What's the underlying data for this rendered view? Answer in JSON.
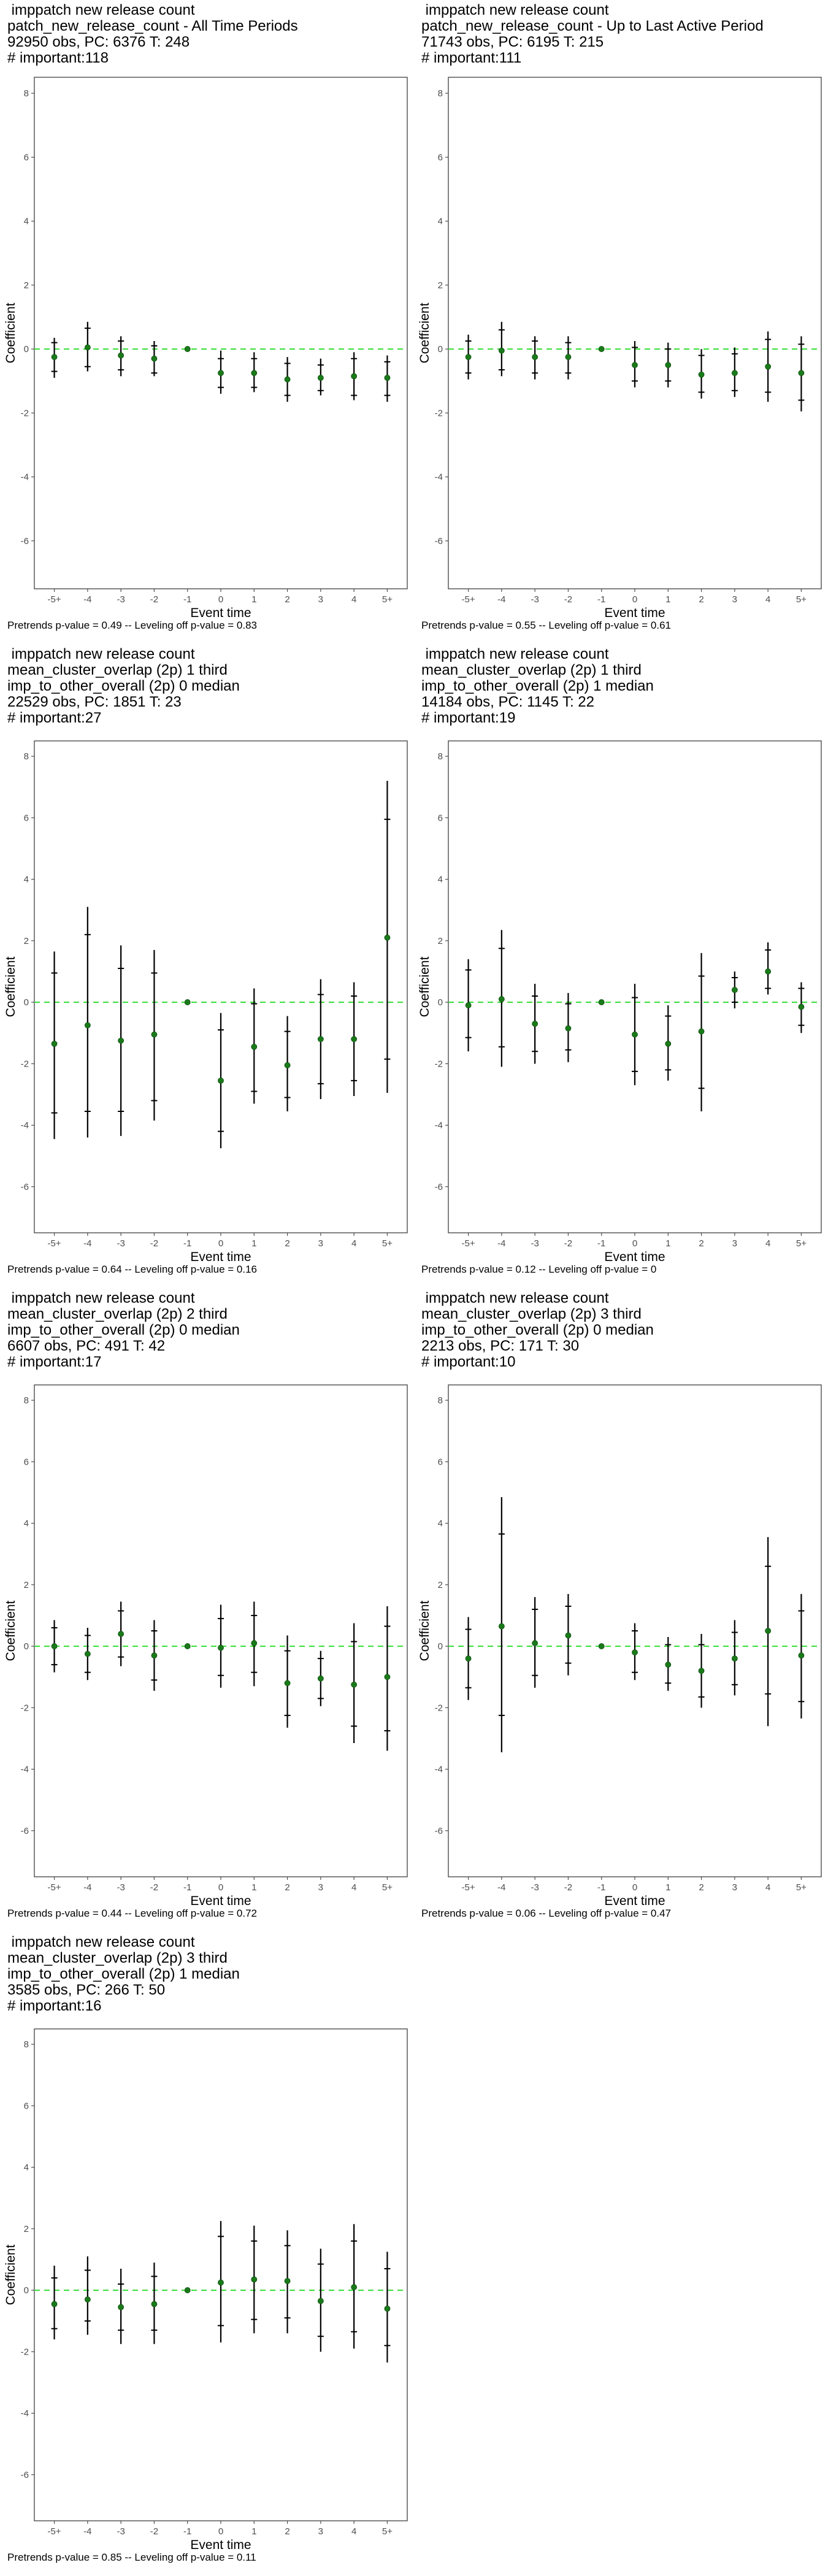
{
  "chart_data": [
    {
      "type": "scatter",
      "title_lines": [
        " imppatch new release count",
        "patch_new_release_count - All Time Periods",
        "92950 obs, PC: 6376 T: 248",
        "# important:118"
      ],
      "xlabel": "Event time",
      "ylabel": "Coefficient",
      "ylim": [
        -7.5,
        8.5
      ],
      "yticks": [
        -6,
        -4,
        -2,
        0,
        2,
        4,
        6,
        8
      ],
      "categories": [
        "-5+",
        "-4",
        "-3",
        "-2",
        "-1",
        "0",
        "1",
        "2",
        "3",
        "4",
        "5+"
      ],
      "series": [
        {
          "estimate": [
            -0.25,
            0.05,
            -0.2,
            -0.3,
            0.0,
            -0.75,
            -0.75,
            -0.95,
            -0.9,
            -0.85,
            -0.9
          ],
          "ci_outer_low": [
            -0.9,
            -0.7,
            -0.85,
            -0.85,
            0.0,
            -1.4,
            -1.35,
            -1.65,
            -1.45,
            -1.6,
            -1.65
          ],
          "ci_outer_high": [
            0.35,
            0.85,
            0.4,
            0.25,
            0.0,
            -0.05,
            -0.1,
            -0.25,
            -0.3,
            -0.1,
            -0.2
          ],
          "ci_inner_low": [
            -0.7,
            -0.55,
            -0.65,
            -0.75,
            0.0,
            -1.2,
            -1.2,
            -1.45,
            -1.3,
            -1.45,
            -1.45
          ],
          "ci_inner_high": [
            0.2,
            0.65,
            0.25,
            0.1,
            0.0,
            -0.3,
            -0.3,
            -0.45,
            -0.5,
            -0.3,
            -0.4
          ]
        }
      ],
      "reference_line": 0,
      "caption": "Pretrends p-value = 0.49 -- Leveling off p-value = 0.83"
    },
    {
      "type": "scatter",
      "title_lines": [
        " imppatch new release count",
        "patch_new_release_count - Up to Last Active Period",
        "71743 obs, PC: 6195 T: 215",
        "# important:111"
      ],
      "xlabel": "Event time",
      "ylabel": "Coefficient",
      "ylim": [
        -7.5,
        8.5
      ],
      "yticks": [
        -6,
        -4,
        -2,
        0,
        2,
        4,
        6,
        8
      ],
      "categories": [
        "-5+",
        "-4",
        "-3",
        "-2",
        "-1",
        "0",
        "1",
        "2",
        "3",
        "4",
        "5+"
      ],
      "series": [
        {
          "estimate": [
            -0.25,
            -0.05,
            -0.25,
            -0.25,
            0.0,
            -0.5,
            -0.5,
            -0.8,
            -0.75,
            -0.55,
            -0.75
          ],
          "ci_outer_low": [
            -0.95,
            -0.85,
            -0.95,
            -0.95,
            0.0,
            -1.2,
            -1.2,
            -1.55,
            -1.5,
            -1.65,
            -1.95
          ],
          "ci_outer_high": [
            0.45,
            0.85,
            0.4,
            0.4,
            0.0,
            0.25,
            0.2,
            0.0,
            0.05,
            0.55,
            0.4
          ],
          "ci_inner_low": [
            -0.75,
            -0.65,
            -0.75,
            -0.75,
            0.0,
            -1.0,
            -1.0,
            -1.35,
            -1.3,
            -1.35,
            -1.6
          ],
          "ci_inner_high": [
            0.25,
            0.6,
            0.25,
            0.2,
            0.0,
            0.05,
            0.0,
            -0.2,
            -0.15,
            0.3,
            0.15
          ]
        }
      ],
      "reference_line": 0,
      "caption": "Pretrends p-value = 0.55 -- Leveling off p-value = 0.61"
    },
    {
      "type": "scatter",
      "title_lines": [
        " imppatch new release count",
        "mean_cluster_overlap (2p) 1 third",
        "imp_to_other_overall (2p) 0 median",
        "22529 obs, PC: 1851 T: 23",
        "# important:27"
      ],
      "xlabel": "Event time",
      "ylabel": "Coefficient",
      "ylim": [
        -7.5,
        8.5
      ],
      "yticks": [
        -6,
        -4,
        -2,
        0,
        2,
        4,
        6,
        8
      ],
      "categories": [
        "-5+",
        "-4",
        "-3",
        "-2",
        "-1",
        "0",
        "1",
        "2",
        "3",
        "4",
        "5+"
      ],
      "series": [
        {
          "estimate": [
            -1.35,
            -0.75,
            -1.25,
            -1.05,
            0.0,
            -2.55,
            -1.45,
            -2.05,
            -1.2,
            -1.2,
            2.1
          ],
          "ci_outer_low": [
            -4.45,
            -4.4,
            -4.35,
            -3.85,
            0.0,
            -4.75,
            -3.3,
            -3.55,
            -3.15,
            -3.05,
            -2.95
          ],
          "ci_outer_high": [
            1.65,
            3.1,
            1.85,
            1.7,
            0.0,
            -0.35,
            0.45,
            -0.45,
            0.75,
            0.65,
            7.2
          ],
          "ci_inner_low": [
            -3.6,
            -3.55,
            -3.55,
            -3.2,
            0.0,
            -4.2,
            -2.9,
            -3.1,
            -2.65,
            -2.55,
            -1.85
          ],
          "ci_inner_high": [
            0.95,
            2.2,
            1.1,
            0.95,
            0.0,
            -0.9,
            -0.05,
            -0.95,
            0.25,
            0.2,
            5.95
          ]
        }
      ],
      "reference_line": 0,
      "caption": "Pretrends p-value = 0.64 -- Leveling off p-value = 0.16"
    },
    {
      "type": "scatter",
      "title_lines": [
        " imppatch new release count",
        "mean_cluster_overlap (2p) 1 third",
        "imp_to_other_overall (2p) 1 median",
        "14184 obs, PC: 1145 T: 22",
        "# important:19"
      ],
      "xlabel": "Event time",
      "ylabel": "Coefficient",
      "ylim": [
        -7.5,
        8.5
      ],
      "yticks": [
        -6,
        -4,
        -2,
        0,
        2,
        4,
        6,
        8
      ],
      "categories": [
        "-5+",
        "-4",
        "-3",
        "-2",
        "-1",
        "0",
        "1",
        "2",
        "3",
        "4",
        "5+"
      ],
      "series": [
        {
          "estimate": [
            -0.1,
            0.1,
            -0.7,
            -0.85,
            0.0,
            -1.05,
            -1.35,
            -0.95,
            0.4,
            1.0,
            -0.15
          ],
          "ci_outer_low": [
            -1.6,
            -2.1,
            -2.0,
            -1.95,
            0.0,
            -2.7,
            -2.55,
            -3.55,
            -0.2,
            0.25,
            -1.0
          ],
          "ci_outer_high": [
            1.4,
            2.35,
            0.6,
            0.3,
            0.0,
            0.6,
            -0.1,
            1.6,
            1.0,
            1.95,
            0.65
          ],
          "ci_inner_low": [
            -1.15,
            -1.45,
            -1.6,
            -1.55,
            0.0,
            -2.25,
            -2.2,
            -2.8,
            0.0,
            0.45,
            -0.75
          ],
          "ci_inner_high": [
            1.05,
            1.75,
            0.2,
            -0.05,
            0.0,
            0.15,
            -0.45,
            0.85,
            0.8,
            1.7,
            0.45
          ]
        }
      ],
      "reference_line": 0,
      "caption": "Pretrends p-value = 0.12 -- Leveling off p-value = 0"
    },
    {
      "type": "scatter",
      "title_lines": [
        " imppatch new release count",
        "mean_cluster_overlap (2p) 2 third",
        "imp_to_other_overall (2p) 0 median",
        "6607 obs, PC: 491 T: 42",
        "# important:17"
      ],
      "xlabel": "Event time",
      "ylabel": "Coefficient",
      "ylim": [
        -7.5,
        8.5
      ],
      "yticks": [
        -6,
        -4,
        -2,
        0,
        2,
        4,
        6,
        8
      ],
      "categories": [
        "-5+",
        "-4",
        "-3",
        "-2",
        "-1",
        "0",
        "1",
        "2",
        "3",
        "4",
        "5+"
      ],
      "series": [
        {
          "estimate": [
            0.0,
            -0.25,
            0.4,
            -0.3,
            0.0,
            -0.05,
            0.1,
            -1.2,
            -1.05,
            -1.25,
            -1.0
          ],
          "ci_outer_low": [
            -0.85,
            -1.1,
            -0.65,
            -1.45,
            0.0,
            -1.35,
            -1.3,
            -2.65,
            -1.95,
            -3.15,
            -3.4
          ],
          "ci_outer_high": [
            0.85,
            0.6,
            1.45,
            0.85,
            0.0,
            1.35,
            1.45,
            0.35,
            -0.15,
            0.75,
            1.3
          ],
          "ci_inner_low": [
            -0.6,
            -0.85,
            -0.35,
            -1.1,
            0.0,
            -0.95,
            -0.85,
            -2.25,
            -1.7,
            -2.6,
            -2.75
          ],
          "ci_inner_high": [
            0.6,
            0.35,
            1.15,
            0.5,
            0.0,
            0.9,
            1.0,
            -0.15,
            -0.4,
            0.15,
            0.65
          ]
        }
      ],
      "reference_line": 0,
      "caption": "Pretrends p-value = 0.44 -- Leveling off p-value = 0.72"
    },
    {
      "type": "scatter",
      "title_lines": [
        " imppatch new release count",
        "mean_cluster_overlap (2p) 3 third",
        "imp_to_other_overall (2p) 0 median",
        "2213 obs, PC: 171 T: 30",
        "# important:10"
      ],
      "xlabel": "Event time",
      "ylabel": "Coefficient",
      "ylim": [
        -7.5,
        8.5
      ],
      "yticks": [
        -6,
        -4,
        -2,
        0,
        2,
        4,
        6,
        8
      ],
      "categories": [
        "-5+",
        "-4",
        "-3",
        "-2",
        "-1",
        "0",
        "1",
        "2",
        "3",
        "4",
        "5+"
      ],
      "series": [
        {
          "estimate": [
            -0.4,
            0.65,
            0.1,
            0.35,
            0.0,
            -0.2,
            -0.6,
            -0.8,
            -0.4,
            0.5,
            -0.3
          ],
          "ci_outer_low": [
            -1.75,
            -3.45,
            -1.35,
            -0.95,
            0.0,
            -1.1,
            -1.45,
            -2.0,
            -1.6,
            -2.6,
            -2.35
          ],
          "ci_outer_high": [
            0.95,
            4.85,
            1.6,
            1.7,
            0.0,
            0.75,
            0.3,
            0.4,
            0.85,
            3.55,
            1.7
          ],
          "ci_inner_low": [
            -1.35,
            -2.25,
            -0.95,
            -0.55,
            0.0,
            -0.85,
            -1.2,
            -1.65,
            -1.25,
            -1.55,
            -1.8
          ],
          "ci_inner_high": [
            0.55,
            3.65,
            1.2,
            1.3,
            0.0,
            0.5,
            0.05,
            0.05,
            0.45,
            2.6,
            1.15
          ]
        }
      ],
      "reference_line": 0,
      "caption": "Pretrends p-value = 0.06 -- Leveling off p-value = 0.47"
    },
    {
      "type": "scatter",
      "title_lines": [
        " imppatch new release count",
        "mean_cluster_overlap (2p) 3 third",
        "imp_to_other_overall (2p) 1 median",
        "3585 obs, PC: 266 T: 50",
        "# important:16"
      ],
      "xlabel": "Event time",
      "ylabel": "Coefficient",
      "ylim": [
        -7.5,
        8.5
      ],
      "yticks": [
        -6,
        -4,
        -2,
        0,
        2,
        4,
        6,
        8
      ],
      "categories": [
        "-5+",
        "-4",
        "-3",
        "-2",
        "-1",
        "0",
        "1",
        "2",
        "3",
        "4",
        "5+"
      ],
      "series": [
        {
          "estimate": [
            -0.45,
            -0.3,
            -0.55,
            -0.45,
            0.0,
            0.25,
            0.35,
            0.3,
            -0.35,
            0.1,
            -0.6
          ],
          "ci_outer_low": [
            -1.6,
            -1.45,
            -1.75,
            -1.75,
            0.0,
            -1.7,
            -1.4,
            -1.4,
            -2.0,
            -1.9,
            -2.35
          ],
          "ci_outer_high": [
            0.8,
            1.1,
            0.7,
            0.9,
            0.0,
            2.25,
            2.1,
            1.95,
            1.35,
            2.15,
            1.25
          ],
          "ci_inner_low": [
            -1.25,
            -1.0,
            -1.3,
            -1.3,
            0.0,
            -1.15,
            -0.95,
            -0.9,
            -1.5,
            -1.35,
            -1.8
          ],
          "ci_inner_high": [
            0.4,
            0.65,
            0.2,
            0.45,
            0.0,
            1.75,
            1.6,
            1.45,
            0.85,
            1.6,
            0.7
          ]
        }
      ],
      "reference_line": 0,
      "caption": "Pretrends p-value = 0.85 -- Leveling off p-value = 0.11"
    }
  ],
  "colors": {
    "estimate_point": "#1a7a1a",
    "zero_line": "#33dd33",
    "error_bar": "#000000",
    "panel_border": "#4d4d4d",
    "tick_label": "#4d4d4d"
  }
}
